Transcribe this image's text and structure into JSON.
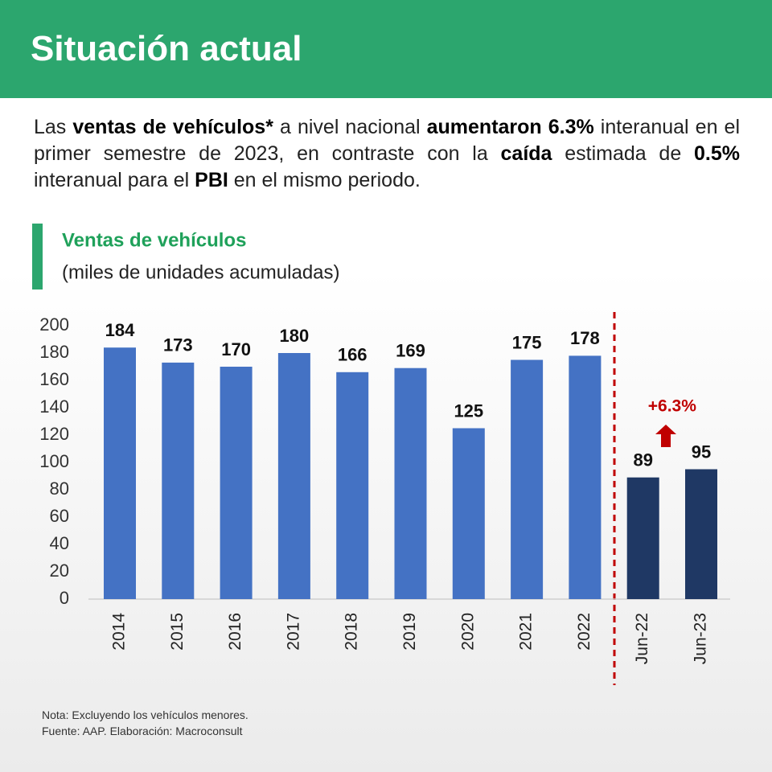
{
  "header": {
    "title": "Situación actual"
  },
  "intro": {
    "segments": [
      {
        "text": "Las ",
        "bold": false
      },
      {
        "text": "ventas de vehículos*",
        "bold": true
      },
      {
        "text": " a nivel nacional ",
        "bold": false
      },
      {
        "text": "aumentaron 6.3%",
        "bold": true
      },
      {
        "text": " interanual en el primer semestre de 2023, en contraste con la ",
        "bold": false
      },
      {
        "text": "caída",
        "bold": true
      },
      {
        "text": " estimada de ",
        "bold": false
      },
      {
        "text": "0.5%",
        "bold": true
      },
      {
        "text": " interanual para el ",
        "bold": false
      },
      {
        "text": "PBI",
        "bold": true
      },
      {
        "text": " en el mismo periodo.",
        "bold": false
      }
    ]
  },
  "chart_data": {
    "type": "bar",
    "title": "Ventas de vehículos",
    "subtitle": "(miles de unidades acumuladas)",
    "categories": [
      "2014",
      "2015",
      "2016",
      "2017",
      "2018",
      "2019",
      "2020",
      "2021",
      "2022",
      "Jun-22",
      "Jun-23"
    ],
    "values": [
      184,
      173,
      170,
      180,
      166,
      169,
      125,
      175,
      178,
      89,
      95
    ],
    "colors": [
      "#4472c4",
      "#4472c4",
      "#4472c4",
      "#4472c4",
      "#4472c4",
      "#4472c4",
      "#4472c4",
      "#4472c4",
      "#4472c4",
      "#1f3864",
      "#1f3864"
    ],
    "ylim": [
      0,
      200
    ],
    "yticks": [
      0,
      20,
      40,
      60,
      80,
      100,
      120,
      140,
      160,
      180,
      200
    ],
    "grid": false,
    "annotation": {
      "text": "+6.3%",
      "color": "#c00000"
    }
  },
  "notes": [
    "Nota: Excluyendo los vehículos menores.",
    "Fuente: AAP. Elaboración: Macroconsult"
  ]
}
